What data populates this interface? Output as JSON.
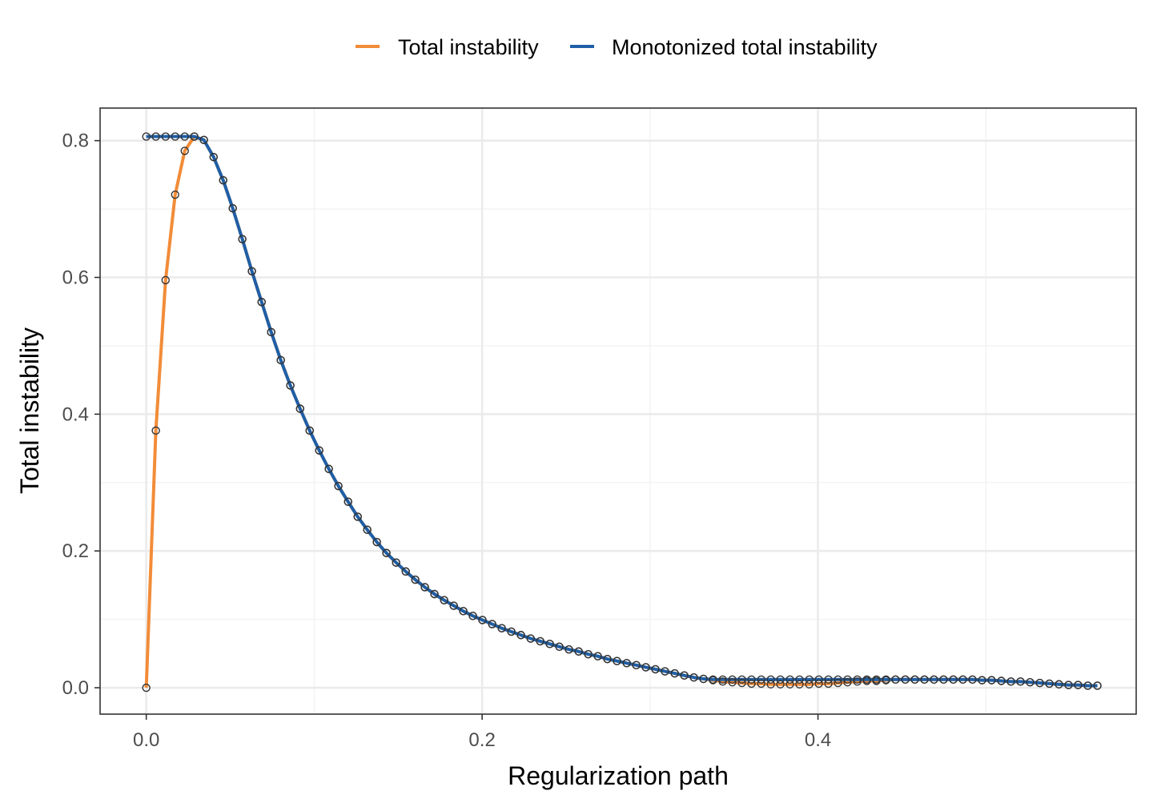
{
  "chart_data": {
    "type": "line",
    "title": "",
    "xlabel": "Regularization path",
    "ylabel": "Total instability",
    "xlim": [
      -0.0275,
      0.5895
    ],
    "ylim": [
      -0.0386,
      0.8476
    ],
    "x_ticks": [
      0.0,
      0.2,
      0.4
    ],
    "x_tick_labels": [
      "0.0",
      "0.2",
      "0.4"
    ],
    "y_ticks": [
      0.0,
      0.2,
      0.4,
      0.6,
      0.8
    ],
    "y_tick_labels": [
      "0.0",
      "0.2",
      "0.4",
      "0.6",
      "0.8"
    ],
    "grid": true,
    "legend_position": "top",
    "series": [
      {
        "name": "Total instability",
        "color": "#F28C38",
        "x": [
          0.0,
          0.0057,
          0.0115,
          0.0172,
          0.0229,
          0.0286,
          0.0343,
          0.0401,
          0.0458,
          0.0515,
          0.0572,
          0.0629,
          0.0687,
          0.0744,
          0.0801,
          0.0858,
          0.0916,
          0.0973,
          0.103,
          0.1087,
          0.1144,
          0.1202,
          0.1259,
          0.1316,
          0.1373,
          0.143,
          0.1488,
          0.1545,
          0.1602,
          0.1659,
          0.1716,
          0.1774,
          0.1831,
          0.1888,
          0.1945,
          0.2002,
          0.206,
          0.2117,
          0.2174,
          0.2231,
          0.2289,
          0.2346,
          0.2403,
          0.246,
          0.2517,
          0.2575,
          0.2632,
          0.2689,
          0.2746,
          0.2803,
          0.2861,
          0.2918,
          0.2975,
          0.3032,
          0.3089,
          0.3147,
          0.3204,
          0.3261,
          0.3318,
          0.3375,
          0.3433,
          0.349,
          0.3547,
          0.3604,
          0.3662,
          0.3719,
          0.3776,
          0.3833,
          0.389,
          0.3948,
          0.4005,
          0.4062,
          0.4119,
          0.4176,
          0.4234,
          0.4291,
          0.4348,
          0.4405,
          0.4462,
          0.452,
          0.4577,
          0.4634,
          0.4691,
          0.4748,
          0.4806,
          0.4863,
          0.492,
          0.4977,
          0.5034,
          0.5092,
          0.5149,
          0.5206,
          0.5263,
          0.5321,
          0.5378,
          0.5435,
          0.5492,
          0.5549,
          0.5607,
          0.5664
        ],
        "y": [
          0.0,
          0.376,
          0.596,
          0.721,
          0.785,
          0.806,
          0.801,
          0.776,
          0.742,
          0.701,
          0.656,
          0.609,
          0.564,
          0.52,
          0.479,
          0.442,
          0.408,
          0.376,
          0.347,
          0.32,
          0.295,
          0.272,
          0.25,
          0.231,
          0.213,
          0.197,
          0.183,
          0.17,
          0.158,
          0.147,
          0.137,
          0.128,
          0.12,
          0.112,
          0.105,
          0.099,
          0.093,
          0.087,
          0.082,
          0.077,
          0.072,
          0.068,
          0.064,
          0.06,
          0.056,
          0.053,
          0.049,
          0.046,
          0.042,
          0.039,
          0.036,
          0.033,
          0.03,
          0.027,
          0.024,
          0.021,
          0.018,
          0.015,
          0.013,
          0.011,
          0.009,
          0.008,
          0.007,
          0.006,
          0.006,
          0.005,
          0.005,
          0.005,
          0.005,
          0.005,
          0.006,
          0.006,
          0.007,
          0.008,
          0.009,
          0.01,
          0.01,
          0.011,
          0.012,
          0.012,
          0.012,
          0.012,
          0.012,
          0.012,
          0.012,
          0.012,
          0.012,
          0.011,
          0.011,
          0.01,
          0.009,
          0.009,
          0.008,
          0.007,
          0.006,
          0.005,
          0.004,
          0.004,
          0.003,
          0.003
        ]
      },
      {
        "name": "Monotonized total instability",
        "color": "#1F5FA6",
        "x": [
          0.0,
          0.0057,
          0.0115,
          0.0172,
          0.0229,
          0.0286,
          0.0343,
          0.0401,
          0.0458,
          0.0515,
          0.0572,
          0.0629,
          0.0687,
          0.0744,
          0.0801,
          0.0858,
          0.0916,
          0.0973,
          0.103,
          0.1087,
          0.1144,
          0.1202,
          0.1259,
          0.1316,
          0.1373,
          0.143,
          0.1488,
          0.1545,
          0.1602,
          0.1659,
          0.1716,
          0.1774,
          0.1831,
          0.1888,
          0.1945,
          0.2002,
          0.206,
          0.2117,
          0.2174,
          0.2231,
          0.2289,
          0.2346,
          0.2403,
          0.246,
          0.2517,
          0.2575,
          0.2632,
          0.2689,
          0.2746,
          0.2803,
          0.2861,
          0.2918,
          0.2975,
          0.3032,
          0.3089,
          0.3147,
          0.3204,
          0.3261,
          0.3318,
          0.3375,
          0.3433,
          0.349,
          0.3547,
          0.3604,
          0.3662,
          0.3719,
          0.3776,
          0.3833,
          0.389,
          0.3948,
          0.4005,
          0.4062,
          0.4119,
          0.4176,
          0.4234,
          0.4291,
          0.4348,
          0.4405,
          0.4462,
          0.452,
          0.4577,
          0.4634,
          0.4691,
          0.4748,
          0.4806,
          0.4863,
          0.492,
          0.4977,
          0.5034,
          0.5092,
          0.5149,
          0.5206,
          0.5263,
          0.5321,
          0.5378,
          0.5435,
          0.5492,
          0.5549,
          0.5607,
          0.5664
        ],
        "y": [
          0.806,
          0.806,
          0.806,
          0.806,
          0.806,
          0.806,
          0.801,
          0.776,
          0.742,
          0.701,
          0.656,
          0.609,
          0.564,
          0.52,
          0.479,
          0.442,
          0.408,
          0.376,
          0.347,
          0.32,
          0.295,
          0.272,
          0.25,
          0.231,
          0.213,
          0.197,
          0.183,
          0.17,
          0.158,
          0.147,
          0.137,
          0.128,
          0.12,
          0.112,
          0.105,
          0.099,
          0.093,
          0.087,
          0.082,
          0.077,
          0.072,
          0.068,
          0.064,
          0.06,
          0.056,
          0.053,
          0.049,
          0.046,
          0.042,
          0.039,
          0.036,
          0.033,
          0.03,
          0.027,
          0.024,
          0.021,
          0.018,
          0.015,
          0.013,
          0.012,
          0.012,
          0.012,
          0.012,
          0.012,
          0.012,
          0.012,
          0.012,
          0.012,
          0.012,
          0.012,
          0.012,
          0.012,
          0.012,
          0.012,
          0.012,
          0.012,
          0.012,
          0.012,
          0.012,
          0.012,
          0.012,
          0.012,
          0.012,
          0.012,
          0.012,
          0.012,
          0.012,
          0.011,
          0.011,
          0.01,
          0.009,
          0.009,
          0.008,
          0.007,
          0.006,
          0.005,
          0.004,
          0.004,
          0.003,
          0.003
        ]
      }
    ]
  }
}
